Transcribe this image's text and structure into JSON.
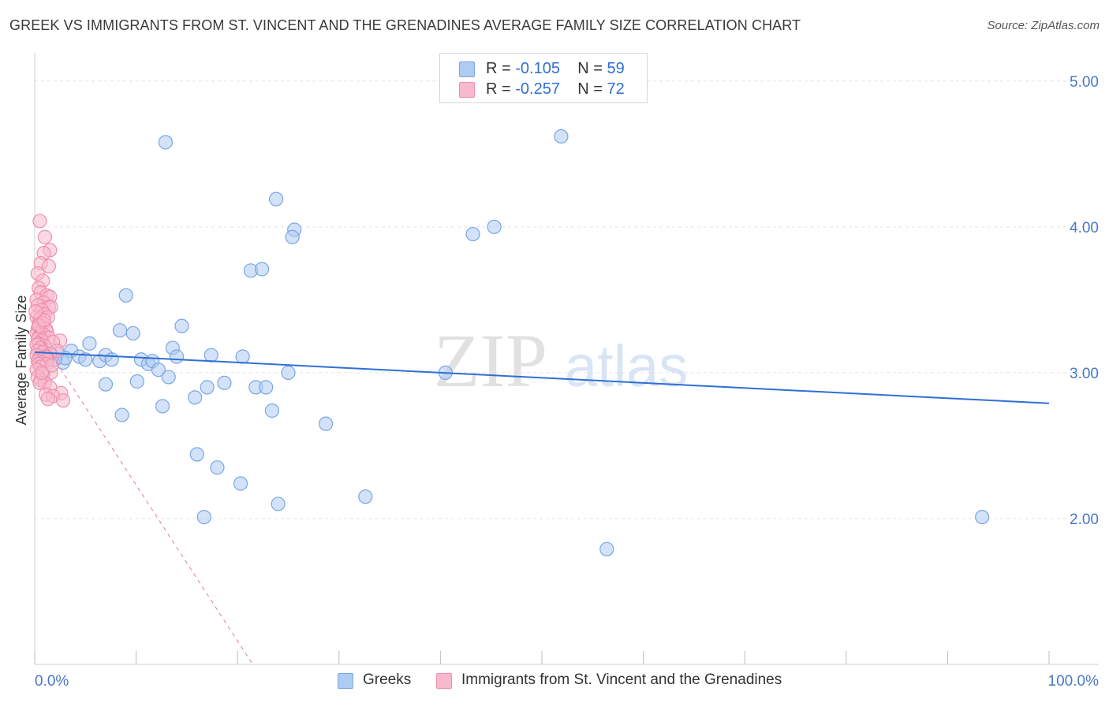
{
  "title": "GREEK VS IMMIGRANTS FROM ST. VINCENT AND THE GRENADINES AVERAGE FAMILY SIZE CORRELATION CHART",
  "source": "Source: ZipAtlas.com",
  "watermark": {
    "zip": "ZIP",
    "atlas": "atlas"
  },
  "legend": {
    "rows": [
      {
        "r_label": "R = ",
        "r_value": "-0.105",
        "n_label": "N = ",
        "n_value": "59"
      },
      {
        "r_label": "R = ",
        "r_value": "-0.257",
        "n_label": "N = ",
        "n_value": "72"
      }
    ]
  },
  "bottom_legend": {
    "greeks": "Greeks",
    "svg_immigrants": "Immigrants from St. Vincent and the Grenadines"
  },
  "colors": {
    "greeks_fill": "#aecbf2",
    "greeks_stroke": "#7aa6e4",
    "greeks_line": "#2f6fd6",
    "svg_fill": "#f8b9cc",
    "svg_stroke": "#ef8fae",
    "svg_line": "#e07a9a",
    "grid": "#e3e3e3",
    "axis_text": "#4a78c8"
  },
  "chart_data": {
    "type": "scatter",
    "title": "GREEK VS IMMIGRANTS FROM ST. VINCENT AND THE GRENADINES AVERAGE FAMILY SIZE CORRELATION CHART",
    "xlabel": "",
    "ylabel": "Average Family Size",
    "xlim": [
      0,
      100
    ],
    "ylim": [
      1.0,
      5.15
    ],
    "x_tick_labels": [
      "0.0%",
      "100.0%"
    ],
    "y_ticks": [
      2.0,
      3.0,
      4.0,
      5.0
    ],
    "y_tick_labels": [
      "2.00",
      "3.00",
      "4.00",
      "5.00"
    ],
    "grid": true,
    "series": [
      {
        "name": "Greeks",
        "R": -0.105,
        "N": 59,
        "trend": {
          "x": [
            0,
            100
          ],
          "y": [
            3.14,
            2.79
          ]
        },
        "points": [
          [
            12.9,
            4.58
          ],
          [
            51.9,
            4.62
          ],
          [
            23.8,
            4.19
          ],
          [
            25.6,
            3.98
          ],
          [
            25.4,
            3.93
          ],
          [
            43.2,
            3.95
          ],
          [
            45.3,
            4.0
          ],
          [
            21.3,
            3.7
          ],
          [
            22.4,
            3.71
          ],
          [
            9.0,
            3.53
          ],
          [
            14.5,
            3.32
          ],
          [
            8.4,
            3.29
          ],
          [
            9.7,
            3.27
          ],
          [
            5.4,
            3.2
          ],
          [
            13.6,
            3.17
          ],
          [
            1.7,
            3.12
          ],
          [
            3.6,
            3.15
          ],
          [
            4.4,
            3.11
          ],
          [
            5.0,
            3.09
          ],
          [
            6.4,
            3.08
          ],
          [
            7.0,
            3.12
          ],
          [
            7.6,
            3.09
          ],
          [
            10.5,
            3.09
          ],
          [
            11.2,
            3.06
          ],
          [
            11.6,
            3.08
          ],
          [
            12.2,
            3.02
          ],
          [
            14.0,
            3.11
          ],
          [
            17.4,
            3.12
          ],
          [
            20.5,
            3.11
          ],
          [
            1.0,
            3.14
          ],
          [
            2.2,
            3.13
          ],
          [
            2.8,
            3.07
          ],
          [
            0.8,
            3.08
          ],
          [
            0.5,
            3.12
          ],
          [
            1.3,
            3.11
          ],
          [
            25.0,
            3.0
          ],
          [
            40.5,
            3.0
          ],
          [
            13.2,
            2.97
          ],
          [
            7.0,
            2.92
          ],
          [
            10.1,
            2.94
          ],
          [
            18.7,
            2.93
          ],
          [
            17.0,
            2.9
          ],
          [
            21.8,
            2.9
          ],
          [
            22.8,
            2.9
          ],
          [
            15.8,
            2.83
          ],
          [
            12.6,
            2.77
          ],
          [
            23.4,
            2.74
          ],
          [
            8.6,
            2.71
          ],
          [
            28.7,
            2.65
          ],
          [
            16.0,
            2.44
          ],
          [
            18.0,
            2.35
          ],
          [
            20.3,
            2.24
          ],
          [
            32.6,
            2.15
          ],
          [
            24.0,
            2.1
          ],
          [
            16.7,
            2.01
          ],
          [
            93.4,
            2.01
          ],
          [
            56.4,
            1.79
          ],
          [
            3.0,
            3.1
          ],
          [
            2.0,
            3.09
          ]
        ]
      },
      {
        "name": "Immigrants from St. Vincent and the Grenadines",
        "R": -0.257,
        "N": 72,
        "trend": {
          "x": [
            0,
            21.5
          ],
          "y": [
            3.3,
            1.0
          ]
        },
        "points": [
          [
            0.5,
            4.04
          ],
          [
            1.0,
            3.93
          ],
          [
            1.5,
            3.84
          ],
          [
            0.9,
            3.82
          ],
          [
            0.6,
            3.75
          ],
          [
            1.4,
            3.73
          ],
          [
            0.3,
            3.68
          ],
          [
            0.8,
            3.63
          ],
          [
            0.4,
            3.58
          ],
          [
            0.6,
            3.55
          ],
          [
            1.2,
            3.53
          ],
          [
            0.2,
            3.5
          ],
          [
            1.5,
            3.52
          ],
          [
            0.9,
            3.48
          ],
          [
            0.3,
            3.46
          ],
          [
            1.4,
            3.45
          ],
          [
            1.6,
            3.45
          ],
          [
            0.7,
            3.43
          ],
          [
            1.0,
            3.4
          ],
          [
            1.3,
            3.38
          ],
          [
            0.2,
            3.38
          ],
          [
            0.5,
            3.37
          ],
          [
            0.8,
            3.34
          ],
          [
            0.4,
            3.33
          ],
          [
            1.1,
            3.3
          ],
          [
            0.3,
            3.3
          ],
          [
            0.6,
            3.28
          ],
          [
            1.2,
            3.28
          ],
          [
            0.2,
            3.27
          ],
          [
            0.9,
            3.26
          ],
          [
            0.5,
            3.25
          ],
          [
            1.4,
            3.24
          ],
          [
            0.3,
            3.23
          ],
          [
            0.7,
            3.22
          ],
          [
            2.5,
            3.22
          ],
          [
            1.8,
            3.21
          ],
          [
            0.4,
            3.2
          ],
          [
            0.2,
            3.19
          ],
          [
            1.0,
            3.18
          ],
          [
            0.6,
            3.17
          ],
          [
            0.3,
            3.15
          ],
          [
            2.2,
            3.15
          ],
          [
            0.8,
            3.14
          ],
          [
            1.5,
            3.13
          ],
          [
            0.2,
            3.12
          ],
          [
            1.1,
            3.11
          ],
          [
            0.5,
            3.1
          ],
          [
            0.9,
            3.1
          ],
          [
            1.3,
            3.09
          ],
          [
            0.3,
            3.08
          ],
          [
            0.7,
            3.07
          ],
          [
            0.4,
            3.06
          ],
          [
            1.2,
            3.06
          ],
          [
            0.6,
            3.04
          ],
          [
            0.2,
            3.02
          ],
          [
            1.6,
            3.0
          ],
          [
            0.8,
            2.99
          ],
          [
            0.3,
            2.97
          ],
          [
            0.6,
            2.95
          ],
          [
            1.0,
            2.93
          ],
          [
            0.5,
            2.93
          ],
          [
            1.5,
            2.9
          ],
          [
            2.6,
            2.86
          ],
          [
            1.1,
            2.85
          ],
          [
            1.8,
            2.84
          ],
          [
            1.3,
            2.82
          ],
          [
            2.8,
            2.81
          ],
          [
            0.7,
            3.0
          ],
          [
            1.7,
            3.05
          ],
          [
            0.4,
            3.32
          ],
          [
            0.9,
            3.36
          ],
          [
            0.1,
            3.42
          ]
        ]
      }
    ]
  }
}
